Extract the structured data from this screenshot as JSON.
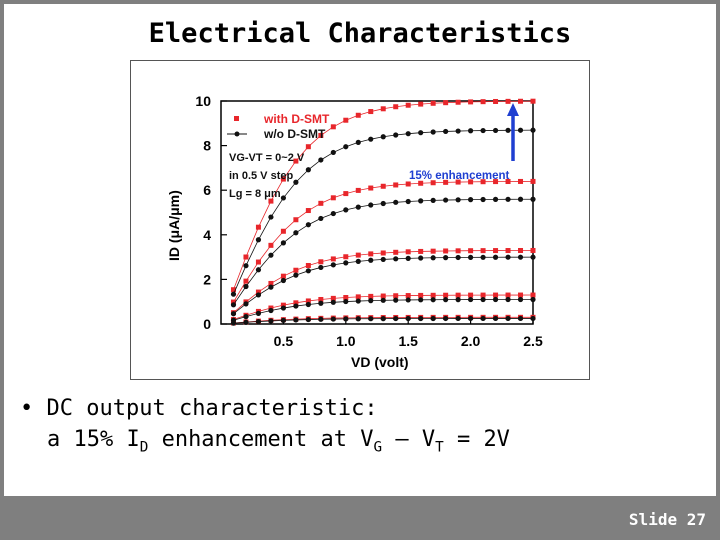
{
  "slide": {
    "title": "Electrical Characteristics",
    "bullet_dot": "•",
    "bullet_line1": "DC output characteristic:",
    "bullet_line2_part1": "a 15% I",
    "bullet_line2_sub1": "D",
    "bullet_line2_part2": " enhancement at V",
    "bullet_line2_sub2": "G",
    "bullet_line2_part3": " – V",
    "bullet_line2_sub3": "T",
    "bullet_line2_part4": " = 2V",
    "slide_number_label": "Slide",
    "slide_number": "27"
  },
  "colors": {
    "with_dsmt": "#e8262b",
    "wo_dsmt": "#111111",
    "arrow": "#1f3fd1",
    "enhancement_text": "#1f3fd1"
  },
  "chart_data": {
    "type": "line",
    "title": "",
    "xlabel": "VD (volt)",
    "ylabel": "ID (μA/μm)",
    "xlim": [
      0,
      2.5
    ],
    "ylim": [
      0,
      10
    ],
    "xticks": [
      "0.5",
      "1.0",
      "1.5",
      "2.0",
      "2.5"
    ],
    "yticks": [
      "0",
      "2",
      "4",
      "6",
      "8",
      "10"
    ],
    "legend": {
      "with_label": "with D-SMT",
      "wo_label": "w/o D-SMT",
      "note1": "VG-VT = 0~2 V",
      "note2": "in 0.5 V step",
      "note3": "Lg = 8 μm",
      "placement": "top-left"
    },
    "annotation": "15% enhancement",
    "x": [
      0.1,
      0.2,
      0.3,
      0.4,
      0.5,
      0.6,
      0.7,
      0.8,
      0.9,
      1.0,
      1.1,
      1.2,
      1.3,
      1.4,
      1.5,
      1.6,
      1.7,
      1.8,
      1.9,
      2.0,
      2.1,
      2.2,
      2.3,
      2.4,
      2.5
    ],
    "series": [
      {
        "name": "with D-SMT",
        "group": "with",
        "vsat": 10.0
      },
      {
        "name": "with D-SMT",
        "group": "with",
        "vsat": 6.4
      },
      {
        "name": "with D-SMT",
        "group": "with",
        "vsat": 3.3
      },
      {
        "name": "with D-SMT",
        "group": "with",
        "vsat": 1.3
      },
      {
        "name": "with D-SMT",
        "group": "with",
        "vsat": 0.3
      },
      {
        "name": "w/o D-SMT",
        "group": "wo",
        "vsat": 8.7
      },
      {
        "name": "w/o D-SMT",
        "group": "wo",
        "vsat": 5.6
      },
      {
        "name": "w/o D-SMT",
        "group": "wo",
        "vsat": 3.0
      },
      {
        "name": "w/o D-SMT",
        "group": "wo",
        "vsat": 1.1
      },
      {
        "name": "w/o D-SMT",
        "group": "wo",
        "vsat": 0.25
      }
    ]
  }
}
